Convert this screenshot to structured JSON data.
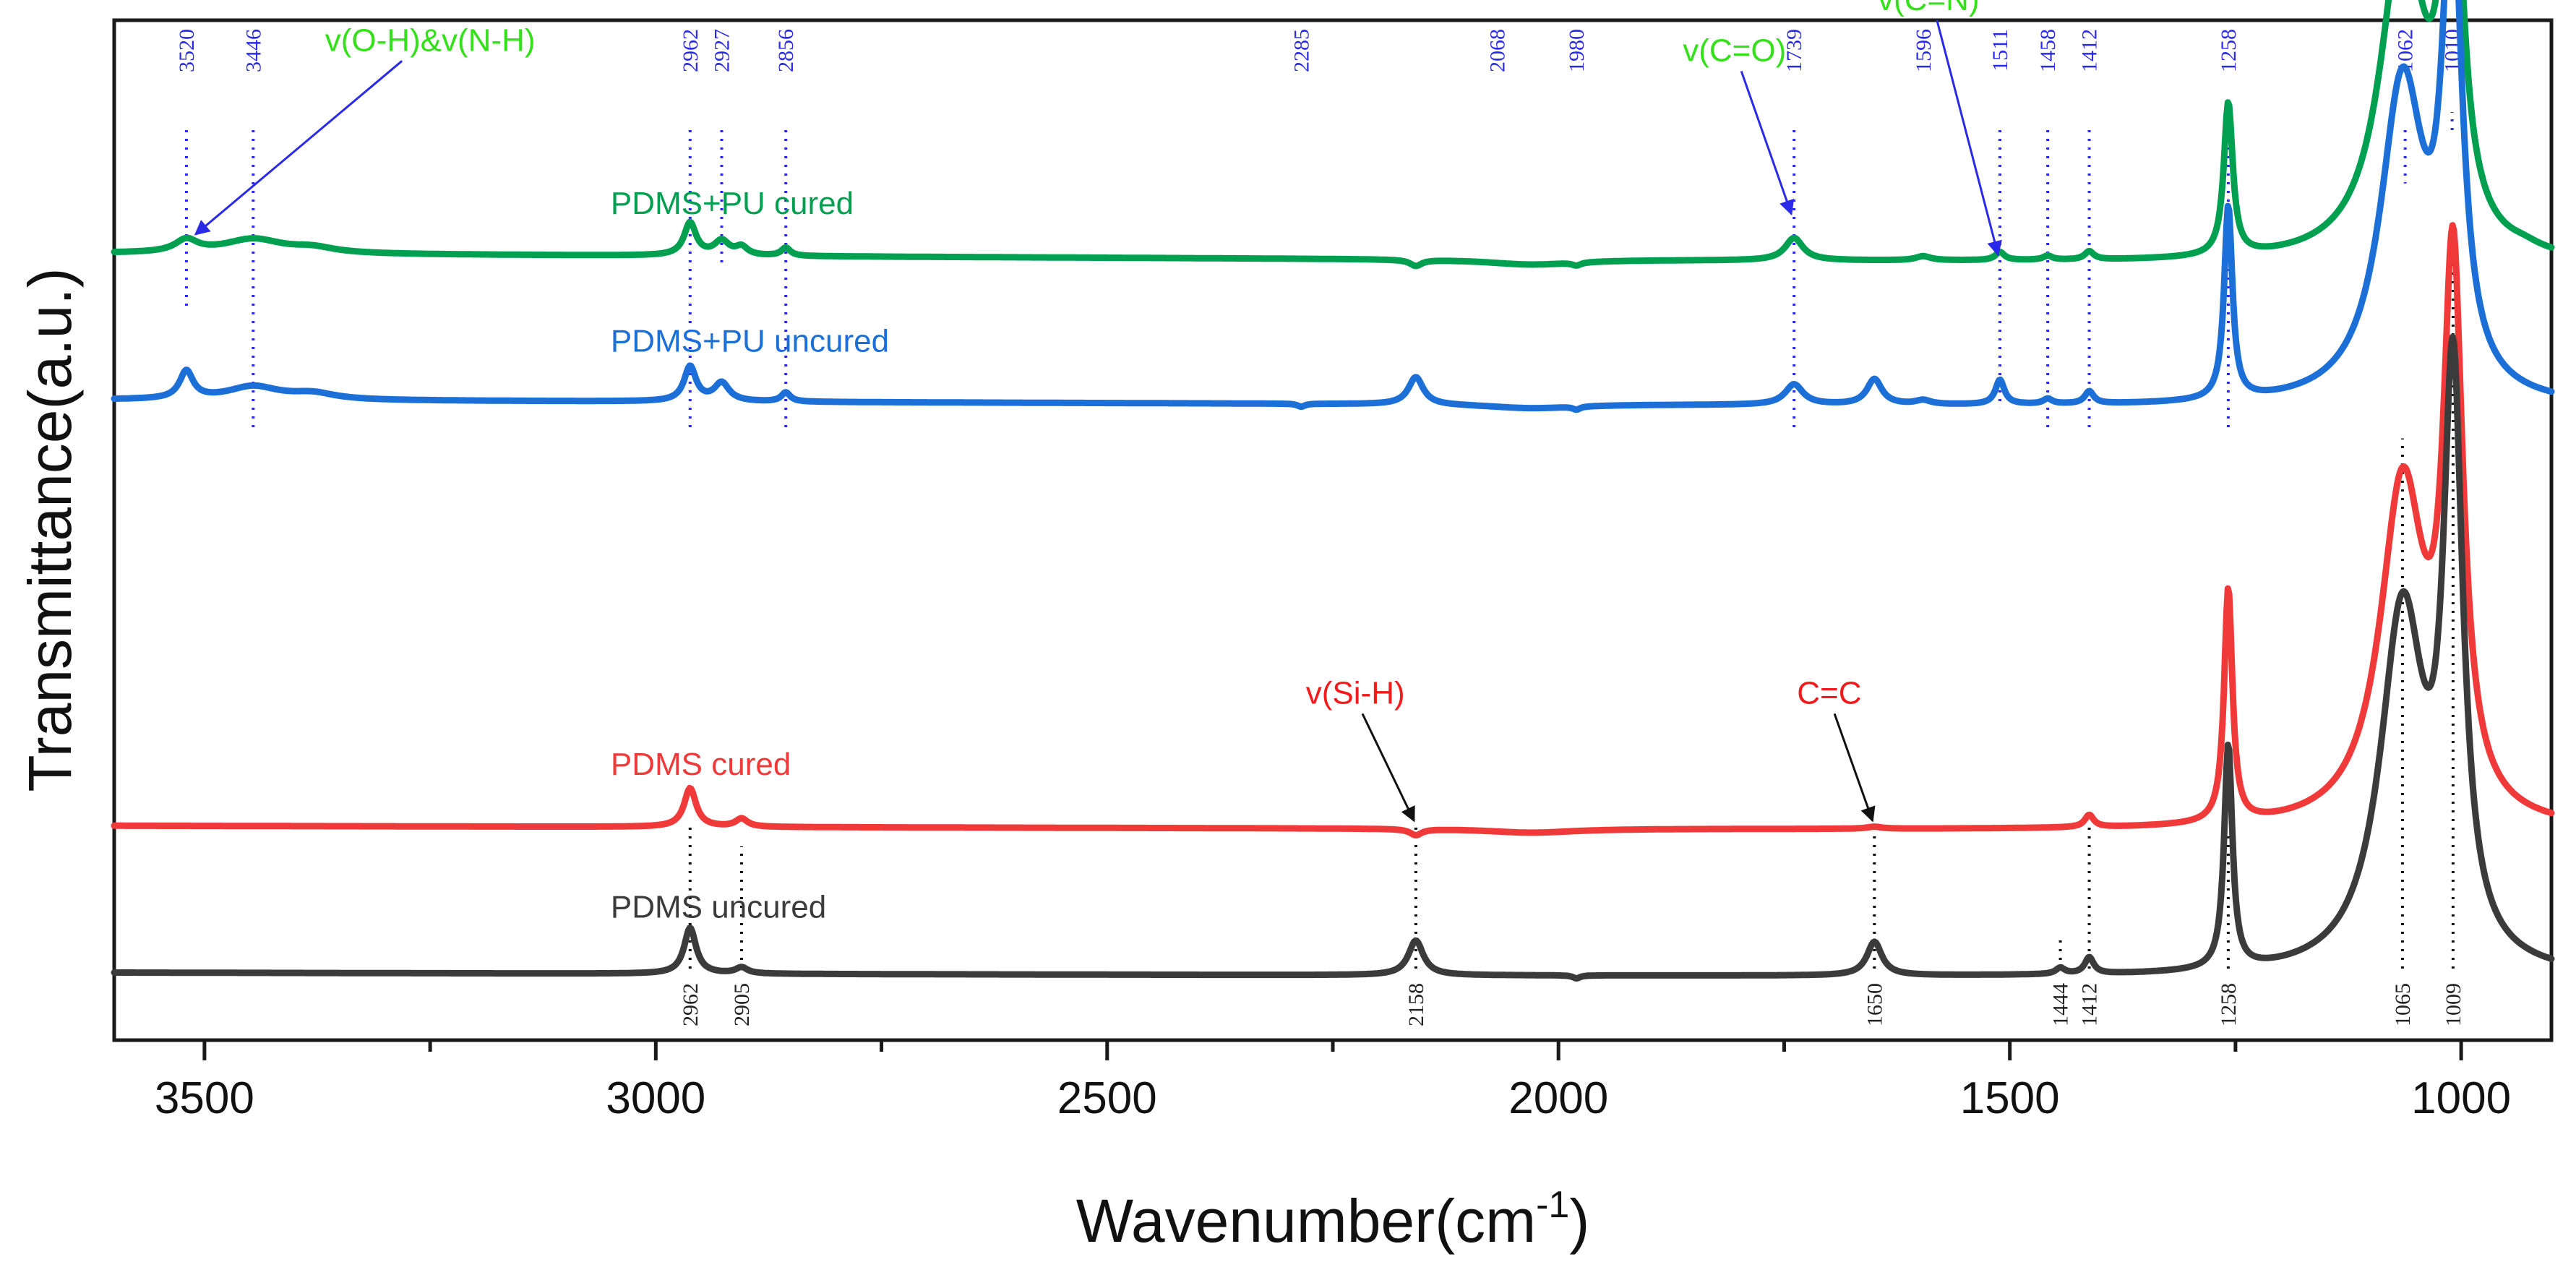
{
  "chart_data": {
    "type": "line",
    "xlabel_main": "Wavenumber(cm",
    "xlabel_sup": "-1",
    "xlabel_end": ")",
    "ylabel": "Transmittance(a.u.)",
    "xlim": [
      3600,
      900
    ],
    "ylim": [
      0,
      100
    ],
    "x_ticks": [
      3500,
      3000,
      2500,
      2000,
      1500,
      1000
    ],
    "x_tick_labels": [
      "3500",
      "3000",
      "2500",
      "2000",
      "1500",
      "1000"
    ],
    "grid": false,
    "colors": {
      "pdms_pu_cured": "#00a050",
      "pdms_pu_uncured": "#1c6fd6",
      "pdms_cured": "#f03a3a",
      "pdms_uncured": "#3b3b3b",
      "top_markers": "#2a2ae8",
      "annotation_green": "#33e01a",
      "annotation_red": "#f21a1a"
    },
    "series": [
      {
        "key": "pdms_pu_cured",
        "name": "PDMS+PU cured",
        "color": "#00a050",
        "baseline": 76.5,
        "tilt": 0.0004,
        "peaks": [
          [
            3520,
            1.2,
            15
          ],
          [
            3446,
            1.4,
            40
          ],
          [
            3380,
            0.5,
            30
          ],
          [
            2962,
            3.2,
            8
          ],
          [
            2927,
            1.4,
            10
          ],
          [
            2905,
            0.8,
            8
          ],
          [
            2856,
            0.8,
            6
          ],
          [
            1739,
            2.2,
            12
          ],
          [
            1596,
            0.4,
            10
          ],
          [
            1511,
            0.8,
            6
          ],
          [
            1458,
            0.4,
            6
          ],
          [
            1412,
            0.8,
            6
          ],
          [
            1258,
            15.0,
            6
          ],
          [
            1065,
            31.0,
            30
          ],
          [
            1010,
            40.0,
            13
          ],
          [
            930,
            0.4,
            20
          ]
        ],
        "dips": [
          [
            2158,
            0.6,
            8
          ],
          [
            2030,
            0.5,
            60
          ],
          [
            1980,
            0.3,
            6
          ]
        ]
      },
      {
        "key": "pdms_pu_uncured",
        "name": "PDMS+PU uncured",
        "color": "#1c6fd6",
        "baseline": 62.3,
        "tilt": 0.0003,
        "peaks": [
          [
            3520,
            2.7,
            9
          ],
          [
            3446,
            1.3,
            35
          ],
          [
            3380,
            0.6,
            30
          ],
          [
            2962,
            3.4,
            8
          ],
          [
            2927,
            1.8,
            10
          ],
          [
            2856,
            0.9,
            6
          ],
          [
            2158,
            2.7,
            10
          ],
          [
            1739,
            2.0,
            12
          ],
          [
            1650,
            2.5,
            10
          ],
          [
            1596,
            0.4,
            10
          ],
          [
            1511,
            2.4,
            6
          ],
          [
            1458,
            0.5,
            6
          ],
          [
            1412,
            1.2,
            6
          ],
          [
            1258,
            19.0,
            5.5
          ],
          [
            1065,
            31.0,
            30
          ],
          [
            1010,
            45.0,
            13
          ]
        ],
        "dips": [
          [
            2285,
            0.3,
            5
          ],
          [
            2030,
            0.4,
            60
          ],
          [
            1980,
            0.3,
            5
          ]
        ]
      },
      {
        "key": "pdms_cured",
        "name": "PDMS cured",
        "color": "#f03a3a",
        "baseline": 20.7,
        "tilt": 0.0002,
        "peaks": [
          [
            2962,
            3.8,
            8
          ],
          [
            2905,
            0.8,
            8
          ],
          [
            1650,
            0.2,
            10
          ],
          [
            1412,
            1.2,
            6
          ],
          [
            1258,
            23.0,
            5.5
          ],
          [
            1065,
            33.0,
            30
          ],
          [
            1009,
            52.0,
            13
          ]
        ],
        "dips": [
          [
            2158,
            0.6,
            8
          ],
          [
            2030,
            0.4,
            60
          ]
        ]
      },
      {
        "key": "pdms_uncured",
        "name": "PDMS uncured",
        "color": "#3b3b3b",
        "baseline": 6.3,
        "tilt": 0.0002,
        "peaks": [
          [
            2962,
            4.5,
            8
          ],
          [
            2905,
            0.6,
            8
          ],
          [
            2158,
            3.4,
            10
          ],
          [
            1650,
            3.3,
            10
          ],
          [
            1444,
            0.6,
            6
          ],
          [
            1412,
            1.6,
            6
          ],
          [
            1258,
            22.0,
            5.5
          ],
          [
            1065,
            35.0,
            30
          ],
          [
            1009,
            55.0,
            13
          ]
        ],
        "dips": [
          [
            1980,
            0.3,
            5
          ]
        ]
      }
    ],
    "top_marker_labels": [
      "3520",
      "3446",
      "2962",
      "2927",
      "2856",
      "2285",
      "2068",
      "1980",
      "1739",
      "1596",
      "1511",
      "1458",
      "1412",
      "1258",
      "1062",
      "1010"
    ],
    "top_marker_x": [
      3520,
      3446,
      2962,
      2927,
      2856,
      2285,
      2068,
      1980,
      1739,
      1596,
      1511,
      1458,
      1412,
      1258,
      1062,
      1010
    ],
    "top_marker_line_to": [
      72,
      60,
      60,
      76,
      60,
      null,
      null,
      null,
      60,
      null,
      62,
      60,
      60,
      60,
      84,
      91
    ],
    "bottom_marker_labels": [
      "2962",
      "2905",
      "2158",
      "1650",
      "1444",
      "1412",
      "1258",
      "1065",
      "1009"
    ],
    "bottom_marker_x": [
      2962,
      2905,
      2158,
      1650,
      1444,
      1412,
      1258,
      1065,
      1009
    ],
    "bottom_marker_line_to": [
      21,
      19,
      21,
      20,
      10,
      21,
      20,
      59,
      77
    ],
    "series_labels": [
      {
        "text": "PDMS+PU cured",
        "x": 3050,
        "y": 81,
        "color": "#00a050"
      },
      {
        "text": "PDMS+PU uncured",
        "x": 3050,
        "y": 67.5,
        "color": "#1c6fd6"
      },
      {
        "text": "PDMS cured",
        "x": 3050,
        "y": 26,
        "color": "#f03a3a"
      },
      {
        "text": "PDMS uncured",
        "x": 3050,
        "y": 12,
        "color": "#3b3b3b"
      }
    ],
    "annotations": [
      {
        "text": "v(O-H)&v(N-H)",
        "x": 3250,
        "y": 97,
        "color": "#33e01a",
        "arrow_to": [
          3510,
          79
        ],
        "arrow_color": "#2a2ae8"
      },
      {
        "text": "v(C=O)",
        "x": 1805,
        "y": 96,
        "color": "#33e01a",
        "arrow_to": [
          1742,
          81
        ],
        "arrow_color": "#2a2ae8"
      },
      {
        "text": "v(C=N)",
        "x": 1590,
        "y": 101,
        "color": "#33e01a",
        "arrow_to": [
          1513,
          77
        ],
        "arrow_color": "#2a2ae8"
      },
      {
        "text": "v(Si-H)",
        "x": 2225,
        "y": 33,
        "color": "#f21a1a",
        "arrow_to": [
          2160,
          21.5
        ],
        "arrow_color": "#111111"
      },
      {
        "text": "C=C",
        "x": 1700,
        "y": 33,
        "color": "#f21a1a",
        "arrow_to": [
          1652,
          21.5
        ],
        "arrow_color": "#111111"
      }
    ]
  }
}
